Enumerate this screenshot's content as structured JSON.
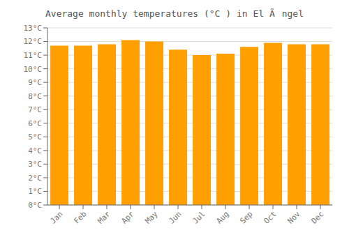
{
  "chart_data": {
    "type": "bar",
    "title": "Average monthly temperatures (°C ) in El Ãngel",
    "categories": [
      "Jan",
      "Feb",
      "Mar",
      "Apr",
      "May",
      "Jun",
      "Jul",
      "Aug",
      "Sep",
      "Oct",
      "Nov",
      "Dec"
    ],
    "values": [
      11.7,
      11.7,
      11.8,
      12.1,
      12.0,
      11.4,
      11.0,
      11.1,
      11.6,
      11.9,
      11.8,
      11.8
    ],
    "color": "#FFA000",
    "ylim": [
      0,
      13
    ],
    "yticks": [
      {
        "value": 0,
        "label": "0°C"
      },
      {
        "value": 1,
        "label": "1°C"
      },
      {
        "value": 2,
        "label": "2°C"
      },
      {
        "value": 3,
        "label": "3°C"
      },
      {
        "value": 4,
        "label": "4°C"
      },
      {
        "value": 5,
        "label": "5°C"
      },
      {
        "value": 6,
        "label": "6°C"
      },
      {
        "value": 7,
        "label": "7°C"
      },
      {
        "value": 8,
        "label": "8°C"
      },
      {
        "value": 9,
        "label": "9°C"
      },
      {
        "value": 10,
        "label": "10°C"
      },
      {
        "value": 11,
        "label": "11°C"
      },
      {
        "value": 12,
        "label": "12°C"
      },
      {
        "value": 13,
        "label": "13°C"
      }
    ],
    "grid": true
  }
}
